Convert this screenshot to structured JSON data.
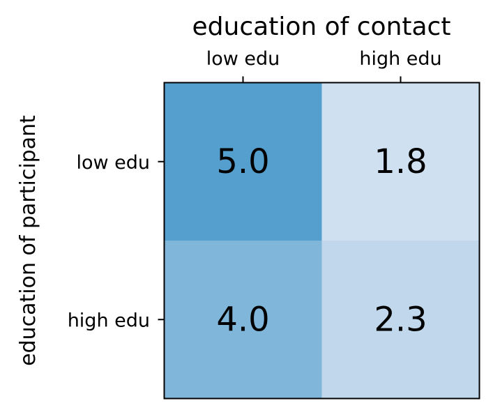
{
  "chart_data": {
    "type": "heatmap",
    "x_title": "education of contact",
    "y_title": "education of participant",
    "x_categories": [
      "low edu",
      "high edu"
    ],
    "y_categories": [
      "low edu",
      "high edu"
    ],
    "values": [
      [
        5.0,
        1.8
      ],
      [
        4.0,
        2.3
      ]
    ],
    "value_labels": [
      [
        "5.0",
        "1.8"
      ],
      [
        "4.0",
        "2.3"
      ]
    ],
    "cell_colors": [
      [
        "#559fcf",
        "#cfe0f1"
      ],
      [
        "#7fb6da",
        "#c1d8ec"
      ]
    ],
    "x_axis_position": "top",
    "grid": false
  }
}
